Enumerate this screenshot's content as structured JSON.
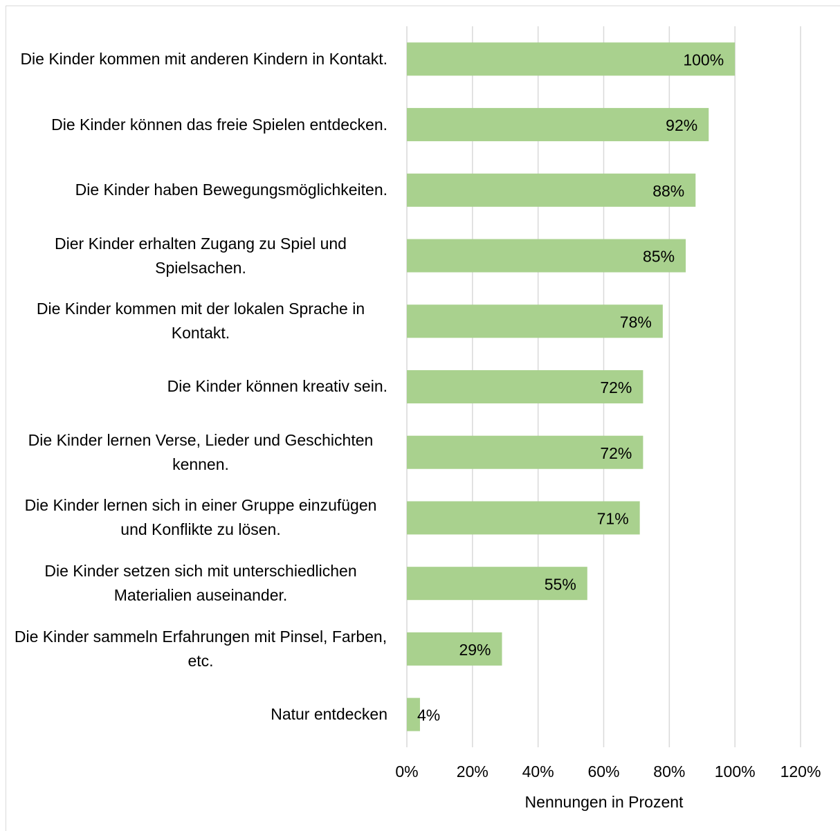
{
  "chart_data": {
    "type": "barh",
    "categories": [
      "Die Kinder kommen mit anderen Kindern in Kontakt.",
      "Die Kinder können das freie Spielen entdecken.",
      "Die Kinder haben Bewegungsmöglichkeiten.",
      "Dier Kinder erhalten Zugang zu Spiel und Spielsachen.",
      "Die Kinder kommen mit der lokalen Sprache in Kontakt.",
      "Die Kinder können kreativ sein.",
      "Die Kinder lernen Verse, Lieder und Geschichten kennen.",
      "Die Kinder lernen sich in einer Gruppe einzufügen und Konflikte zu lösen.",
      "Die Kinder setzen sich mit unterschiedlichen Materialien auseinander.",
      "Die Kinder sammeln Erfahrungen mit Pinsel, Farben, etc.",
      "Natur entdecken"
    ],
    "values": [
      100,
      92,
      88,
      85,
      78,
      72,
      72,
      71,
      55,
      29,
      4
    ],
    "value_labels": [
      "100%",
      "92%",
      "88%",
      "85%",
      "78%",
      "72%",
      "72%",
      "71%",
      "55%",
      "29%",
      "4%"
    ],
    "color": "#a9d18e",
    "xlabel": "Nennungen in Prozent",
    "xlim": [
      0,
      120
    ],
    "xticks": [
      {
        "value": 0,
        "label": "0%"
      },
      {
        "value": 20,
        "label": "20%"
      },
      {
        "value": 40,
        "label": "40%"
      },
      {
        "value": 60,
        "label": "60%"
      },
      {
        "value": 80,
        "label": "80%"
      },
      {
        "value": 100,
        "label": "100%"
      },
      {
        "value": 120,
        "label": "120%"
      }
    ],
    "grid": true
  }
}
